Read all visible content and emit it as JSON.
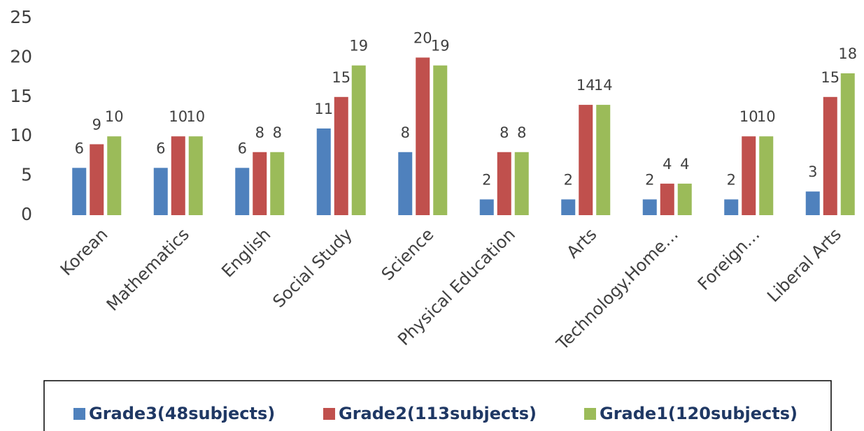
{
  "chart_data": {
    "type": "bar",
    "categories": [
      "Korean",
      "Mathematics",
      "English",
      "Social Study",
      "Science",
      "Physical Education",
      "Arts",
      "Technology.Home…",
      "Foreign…",
      "Liberal Arts"
    ],
    "series": [
      {
        "name": "Grade3(48subjects)",
        "color": "#4f81bd",
        "values": [
          6,
          6,
          6,
          11,
          8,
          2,
          2,
          2,
          2,
          3
        ]
      },
      {
        "name": "Grade2(113subjects)",
        "color": "#c0504d",
        "values": [
          9,
          10,
          8,
          15,
          20,
          8,
          14,
          4,
          10,
          15
        ]
      },
      {
        "name": "Grade1(120subjects)",
        "color": "#9bbb59",
        "values": [
          10,
          10,
          8,
          19,
          19,
          8,
          14,
          4,
          10,
          18
        ]
      }
    ],
    "ylim": [
      0,
      25
    ],
    "yticks": [
      0,
      5,
      10,
      15,
      20,
      25
    ],
    "grid": false,
    "legend": "bottom"
  }
}
